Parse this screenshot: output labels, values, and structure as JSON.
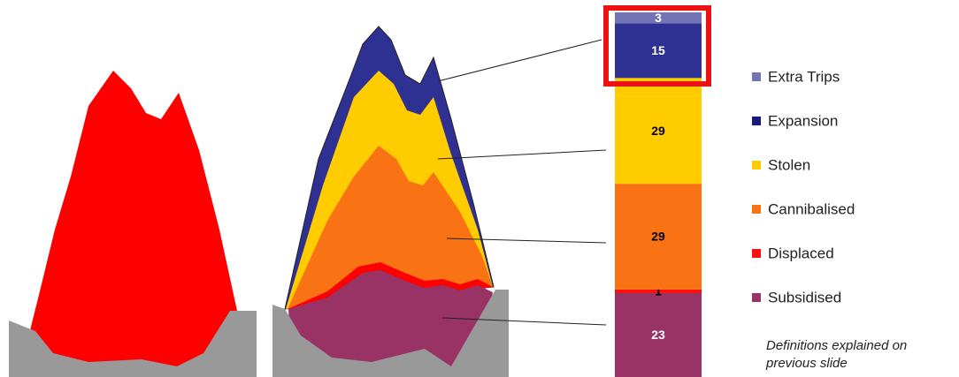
{
  "chart_data": {
    "type": "bar",
    "series": [
      {
        "name": "Extra Trips",
        "color": "#7474b4",
        "label_color": "#ffffff",
        "values": [
          3
        ]
      },
      {
        "name": "Expansion",
        "color": "#2e3192",
        "label_color": "#ffffff",
        "values": [
          15
        ]
      },
      {
        "name": "Stolen",
        "color": "#ffcc00",
        "label_color": "#000000",
        "values": [
          29
        ]
      },
      {
        "name": "Cannibalised",
        "color": "#f97314",
        "label_color": "#000000",
        "values": [
          29
        ]
      },
      {
        "name": "Displaced",
        "color": "#ff1010",
        "label_color": "#000000",
        "values": [
          1
        ]
      },
      {
        "name": "Subsidised",
        "color": "#993366",
        "label_color": "#ffffff",
        "values": [
          23
        ]
      }
    ],
    "legend_colors": [
      "#7474b4",
      "#1a1a7a",
      "#ffcc00",
      "#f97314",
      "#ff1010",
      "#993366"
    ],
    "note": [
      "Definitions explained on",
      "previous slide"
    ]
  }
}
